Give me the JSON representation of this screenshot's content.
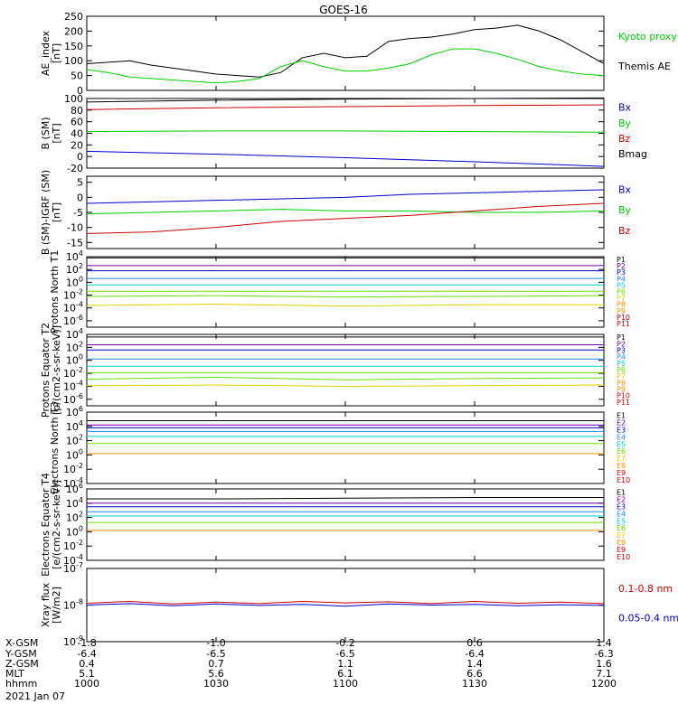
{
  "title": "GOES-16",
  "date_label": "2021 Jan 07",
  "x_axis": {
    "rows": [
      {
        "label": "X-GSM",
        "values": [
          "-1.8",
          "-1.0",
          "-0.2",
          "0.6",
          "1.4"
        ]
      },
      {
        "label": "Y-GSM",
        "values": [
          "-6.4",
          "-6.5",
          "-6.5",
          "-6.4",
          "-6.3"
        ]
      },
      {
        "label": "Z-GSM",
        "values": [
          "0.4",
          "0.7",
          "1.1",
          "1.4",
          "1.6"
        ]
      },
      {
        "label": "MLT",
        "values": [
          "5.1",
          "5.6",
          "6.1",
          "6.6",
          "7.1"
        ]
      },
      {
        "label": "hhmm",
        "values": [
          "1000",
          "1030",
          "1100",
          "1130",
          "1200"
        ]
      }
    ]
  },
  "colors": {
    "black": "#000000",
    "green": "#00cc00",
    "blue": "#0000cc",
    "red": "#cc0000",
    "cyan": "#00cccc",
    "yellow": "#e6d000",
    "orange": "#ff8c00",
    "lime": "#66dd00"
  },
  "chart_data": [
    {
      "type": "line",
      "ylabel": "AE_index [nT]",
      "ylim": [
        0,
        250
      ],
      "yticks": [
        "250",
        "200",
        "150",
        "100",
        "50",
        "0"
      ],
      "legend": [
        "Kyoto proxy AE",
        "Themis AE"
      ],
      "x": [
        0,
        5,
        10,
        15,
        20,
        25,
        30,
        35,
        40,
        45,
        50,
        55,
        60,
        65,
        70,
        75,
        80,
        85,
        90,
        95,
        100,
        105,
        110,
        115,
        120
      ],
      "series": [
        {
          "name": "Themis AE",
          "values": [
            90,
            95,
            100,
            85,
            75,
            65,
            55,
            50,
            45,
            60,
            110,
            125,
            110,
            115,
            165,
            175,
            180,
            190,
            205,
            210,
            220,
            200,
            170,
            130,
            90
          ]
        },
        {
          "name": "Kyoto proxy AE",
          "values": [
            70,
            60,
            45,
            40,
            35,
            30,
            25,
            30,
            40,
            80,
            100,
            80,
            65,
            65,
            75,
            90,
            120,
            140,
            140,
            125,
            105,
            80,
            65,
            55,
            50
          ]
        }
      ]
    },
    {
      "type": "line",
      "ylabel": "B (SM) [nT]",
      "ylim": [
        -20,
        100
      ],
      "yticks": [
        "100",
        "80",
        "60",
        "40",
        "20",
        "0",
        "-20"
      ],
      "legend": [
        "Bx",
        "By",
        "Bz",
        "Bmag"
      ],
      "x": [
        0,
        30,
        60,
        90,
        120
      ],
      "series": [
        {
          "name": "Bmag",
          "values": [
            94,
            97,
            99,
            100,
            101
          ]
        },
        {
          "name": "Bz",
          "values": [
            81,
            84,
            86,
            88,
            89
          ]
        },
        {
          "name": "By",
          "values": [
            43,
            44,
            44,
            43,
            42
          ]
        },
        {
          "name": "Bx",
          "values": [
            9,
            4,
            -2,
            -9,
            -17
          ]
        }
      ]
    },
    {
      "type": "line",
      "ylabel": "B (SM)-IGRF (SM) [nT]",
      "ylim": [
        -17,
        7
      ],
      "yticks": [
        "5",
        "0",
        "-5",
        "-10",
        "-15"
      ],
      "legend": [
        "Bx",
        "By",
        "Bz"
      ],
      "x": [
        0,
        15,
        30,
        45,
        60,
        75,
        90,
        105,
        120
      ],
      "series": [
        {
          "name": "Bx",
          "values": [
            -2,
            -1.5,
            -1,
            -0.5,
            0,
            1,
            1.5,
            2,
            2.5
          ]
        },
        {
          "name": "By",
          "values": [
            -5.5,
            -5,
            -4.5,
            -4,
            -4.5,
            -4.5,
            -5,
            -5,
            -4.5
          ]
        },
        {
          "name": "Bz",
          "values": [
            -12,
            -11.5,
            -10,
            -8,
            -7,
            -6,
            -4.5,
            -3,
            -2
          ]
        }
      ]
    },
    {
      "type": "line",
      "ylabel": "Protons North T1",
      "ylim_exp": [
        -7,
        4
      ],
      "yticks": [
        {
          "b": "10",
          "e": "4"
        },
        {
          "b": "10",
          "e": "2"
        },
        {
          "b": "10",
          "e": "0"
        },
        {
          "b": "10",
          "e": "-2"
        },
        {
          "b": "10",
          "e": "-4"
        },
        {
          "b": "10",
          "e": "-6"
        }
      ],
      "legend": [
        "P1",
        "P2",
        "P3",
        "P4",
        "P5",
        "P6",
        "P7",
        "P8",
        "P9",
        "P10",
        "P11"
      ],
      "x": [
        0,
        30,
        60,
        90,
        120
      ],
      "series": [
        {
          "name": "P1",
          "values": [
            3.8,
            3.8,
            3.8,
            3.8,
            3.8
          ]
        },
        {
          "name": "P2",
          "values": [
            2.6,
            2.6,
            2.6,
            2.6,
            2.6
          ]
        },
        {
          "name": "P3",
          "values": [
            1.8,
            1.8,
            1.8,
            1.8,
            1.8
          ]
        },
        {
          "name": "P4",
          "values": [
            0.6,
            0.6,
            0.6,
            0.6,
            0.6
          ]
        },
        {
          "name": "P5",
          "values": [
            -0.4,
            -0.4,
            -0.4,
            -0.4,
            -0.4
          ]
        },
        {
          "name": "P6",
          "values": [
            -1.4,
            -1.4,
            -1.4,
            -1.4,
            -1.4
          ]
        },
        {
          "name": "P7",
          "values": [
            -2.2,
            -2.1,
            -2.3,
            -2.2,
            -2.1
          ]
        },
        {
          "name": "P8",
          "values": [
            -3.6,
            -3.4,
            -3.7,
            -3.5,
            -3.5
          ]
        }
      ]
    },
    {
      "type": "line",
      "ylabel": "Protons Equator T2 [p/(cm2-s-sr-keV)]",
      "ylim_exp": [
        -7,
        4
      ],
      "yticks": [
        {
          "b": "10",
          "e": "4"
        },
        {
          "b": "10",
          "e": "2"
        },
        {
          "b": "10",
          "e": "0"
        },
        {
          "b": "10",
          "e": "-2"
        },
        {
          "b": "10",
          "e": "-4"
        },
        {
          "b": "10",
          "e": "-6"
        }
      ],
      "legend": [
        "P1",
        "P2",
        "P3",
        "P4",
        "P5",
        "P6",
        "P7",
        "P8",
        "P9",
        "P10",
        "P11"
      ],
      "x": [
        0,
        30,
        60,
        90,
        120
      ],
      "series": [
        {
          "name": "P1",
          "values": [
            3.6,
            3.6,
            3.6,
            3.6,
            3.6
          ]
        },
        {
          "name": "P2",
          "values": [
            2.4,
            2.4,
            2.4,
            2.4,
            2.4
          ]
        },
        {
          "name": "P3",
          "values": [
            1.6,
            1.6,
            1.6,
            1.6,
            1.6
          ]
        },
        {
          "name": "P4",
          "values": [
            0.2,
            0.2,
            0.2,
            0.2,
            0.2
          ]
        },
        {
          "name": "P5",
          "values": [
            -0.9,
            -0.9,
            -0.9,
            -0.9,
            -0.9
          ]
        },
        {
          "name": "P6",
          "values": [
            -1.9,
            -1.9,
            -1.9,
            -1.9,
            -1.9
          ]
        },
        {
          "name": "P7",
          "values": [
            -2.9,
            -2.6,
            -3.0,
            -2.8,
            -2.7
          ]
        },
        {
          "name": "P8",
          "values": [
            -3.9,
            -3.8,
            -4.0,
            -3.9,
            -3.8
          ]
        }
      ]
    },
    {
      "type": "line",
      "ylabel": "Electrons North T3",
      "ylim_exp": [
        -4,
        6
      ],
      "yticks": [
        {
          "b": "10",
          "e": "6"
        },
        {
          "b": "10",
          "e": "4"
        },
        {
          "b": "10",
          "e": "2"
        },
        {
          "b": "10",
          "e": "0"
        },
        {
          "b": "10",
          "e": "-2"
        },
        {
          "b": "10",
          "e": "-4"
        }
      ],
      "legend": [
        "E1",
        "E2",
        "E3",
        "E4",
        "E5",
        "E6",
        "E7",
        "E8",
        "E9",
        "E10"
      ],
      "x": [
        0,
        30,
        60,
        90,
        120
      ],
      "series": [
        {
          "name": "E1",
          "values": [
            4.8,
            4.8,
            4.8,
            4.8,
            4.8
          ]
        },
        {
          "name": "E2",
          "values": [
            4.2,
            4.2,
            4.2,
            4.2,
            4.2
          ]
        },
        {
          "name": "E3",
          "values": [
            3.8,
            3.8,
            3.8,
            3.8,
            3.8
          ]
        },
        {
          "name": "E4",
          "values": [
            3.3,
            3.3,
            3.3,
            3.3,
            3.3
          ]
        },
        {
          "name": "E5",
          "values": [
            2.6,
            2.6,
            2.6,
            2.6,
            2.6
          ]
        },
        {
          "name": "E6",
          "values": [
            1.6,
            1.6,
            1.6,
            1.6,
            1.6
          ]
        },
        {
          "name": "E7",
          "values": [
            0.2,
            0.2,
            0.2,
            0.2,
            0.2
          ]
        }
      ]
    },
    {
      "type": "line",
      "ylabel": "Electrons Equator T4 [e/(cm2-s-sr-keV)]",
      "ylim_exp": [
        -4,
        6
      ],
      "yticks": [
        {
          "b": "10",
          "e": "6"
        },
        {
          "b": "10",
          "e": "4"
        },
        {
          "b": "10",
          "e": "2"
        },
        {
          "b": "10",
          "e": "0"
        },
        {
          "b": "10",
          "e": "-2"
        },
        {
          "b": "10",
          "e": "-4"
        }
      ],
      "legend": [
        "E1",
        "E2",
        "E3",
        "E4",
        "E5",
        "E6",
        "E7",
        "E8",
        "E9",
        "E10"
      ],
      "x": [
        0,
        30,
        60,
        90,
        120
      ],
      "series": [
        {
          "name": "E1",
          "values": [
            4.6,
            4.6,
            4.7,
            4.8,
            4.8
          ]
        },
        {
          "name": "E2",
          "values": [
            4.0,
            4.0,
            4.0,
            4.0,
            4.0
          ]
        },
        {
          "name": "E3",
          "values": [
            3.5,
            3.5,
            3.5,
            3.5,
            3.5
          ]
        },
        {
          "name": "E4",
          "values": [
            2.8,
            2.8,
            2.8,
            2.8,
            2.8
          ]
        },
        {
          "name": "E5",
          "values": [
            2.2,
            2.2,
            2.2,
            2.2,
            2.2
          ]
        },
        {
          "name": "E6",
          "values": [
            1.3,
            1.3,
            1.3,
            1.3,
            1.3
          ]
        },
        {
          "name": "E7",
          "values": [
            0.2,
            0.2,
            0.2,
            0.2,
            0.2
          ]
        }
      ]
    },
    {
      "type": "line",
      "ylabel": "Xray flux [W/m2]",
      "ylim_exp": [
        -9,
        -7
      ],
      "yticks": [
        {
          "b": "10",
          "e": "-7"
        },
        {
          "b": "10",
          "e": "-8"
        },
        {
          "b": "10",
          "e": "-9"
        }
      ],
      "legend": [
        "0.1-0.8 nm",
        "0.05-0.4 nm"
      ],
      "x": [
        0,
        10,
        20,
        30,
        40,
        50,
        60,
        70,
        80,
        90,
        100,
        110,
        120
      ],
      "series": [
        {
          "name": "0.1-0.8 nm",
          "values": [
            -7.95,
            -7.9,
            -7.97,
            -7.92,
            -7.96,
            -7.9,
            -7.94,
            -7.91,
            -7.96,
            -7.9,
            -7.95,
            -7.92,
            -7.96
          ]
        },
        {
          "name": "0.05-0.4 nm",
          "values": [
            -8.0,
            -7.96,
            -8.02,
            -7.97,
            -8.01,
            -7.98,
            -8.03,
            -7.97,
            -8.0,
            -7.98,
            -8.02,
            -7.99,
            -8.01
          ]
        }
      ]
    }
  ]
}
